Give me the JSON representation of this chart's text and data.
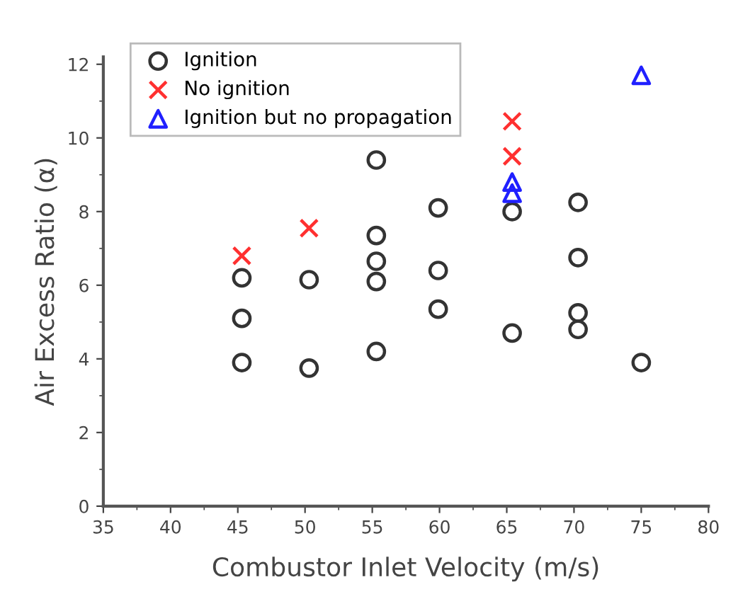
{
  "chart_data": {
    "type": "scatter",
    "xlabel": "Combustor Inlet Velocity (m/s)",
    "ylabel": "Air Excess Ratio (α)",
    "xlim": [
      35,
      80
    ],
    "xticks": [
      35,
      40,
      45,
      50,
      55,
      60,
      65,
      70,
      75,
      80
    ],
    "ylim": [
      0,
      12.2
    ],
    "yticks": [
      0,
      2,
      4,
      6,
      8,
      10,
      12
    ],
    "grid": false,
    "legend": "top left",
    "series": [
      {
        "name": "Ignition",
        "color": "#333333",
        "marker": "circle",
        "x": [
          45.3,
          45.3,
          45.3,
          50.3,
          50.3,
          55.3,
          55.3,
          55.3,
          55.3,
          55.3,
          59.9,
          59.9,
          59.9,
          65.4,
          65.4,
          70.3,
          70.3,
          70.3,
          70.3,
          75
        ],
        "values": [
          6.2,
          5.1,
          3.9,
          6.15,
          3.75,
          9.4,
          7.35,
          6.65,
          6.1,
          4.2,
          8.1,
          6.4,
          5.35,
          8.0,
          4.7,
          8.25,
          6.75,
          5.25,
          4.8,
          3.9
        ]
      },
      {
        "name": "No ignition",
        "color": "#ff3030",
        "marker": "cross",
        "x": [
          45.3,
          50.3,
          65.4,
          65.4
        ],
        "values": [
          6.8,
          7.55,
          10.45,
          9.5
        ]
      },
      {
        "name": "Ignition but no propagation",
        "color": "#2020ff",
        "marker": "triangle",
        "x": [
          65.4,
          65.4,
          75
        ],
        "values": [
          8.8,
          8.5,
          11.7
        ]
      }
    ]
  }
}
